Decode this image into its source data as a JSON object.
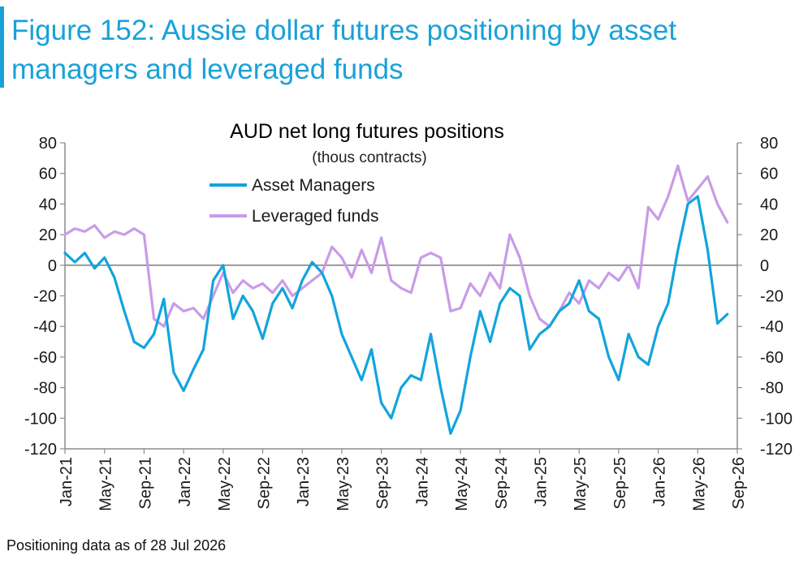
{
  "figure": {
    "title": "Figure 152: Aussie dollar futures positioning by asset managers and leveraged funds",
    "accent_color": "#1aa1d8"
  },
  "footnote": "Positioning data as of 28 Jul 2026",
  "chart_data": {
    "type": "line",
    "title": "AUD net long futures positions",
    "subtitle": "(thous contracts)",
    "ylim": [
      -120,
      80
    ],
    "yticks": [
      80,
      60,
      40,
      20,
      0,
      -20,
      -40,
      -60,
      -80,
      -100,
      -120
    ],
    "y_axes": "left and right, identical scale",
    "xlim": [
      "2021-01",
      "2026-09"
    ],
    "x_tick_labels": [
      "Jan-21",
      "May-21",
      "Sep-21",
      "Jan-22",
      "May-22",
      "Sep-22",
      "Jan-23",
      "May-23",
      "Sep-23",
      "Jan-24",
      "May-24",
      "Sep-24",
      "Jan-25",
      "May-25",
      "Sep-25",
      "Jan-26",
      "May-26",
      "Sep-26"
    ],
    "grid": false,
    "zero_line": true,
    "legend_position": "top-center",
    "series": [
      {
        "name": "Asset Managers",
        "color": "#12a4dd",
        "points": [
          [
            "2021-01",
            8
          ],
          [
            "2021-02",
            2
          ],
          [
            "2021-03",
            8
          ],
          [
            "2021-04",
            -2
          ],
          [
            "2021-05",
            5
          ],
          [
            "2021-06",
            -8
          ],
          [
            "2021-07",
            -30
          ],
          [
            "2021-08",
            -50
          ],
          [
            "2021-09",
            -54
          ],
          [
            "2021-10",
            -45
          ],
          [
            "2021-11",
            -22
          ],
          [
            "2021-12",
            -70
          ],
          [
            "2022-01",
            -82
          ],
          [
            "2022-02",
            -68
          ],
          [
            "2022-03",
            -55
          ],
          [
            "2022-04",
            -10
          ],
          [
            "2022-05",
            0
          ],
          [
            "2022-06",
            -35
          ],
          [
            "2022-07",
            -20
          ],
          [
            "2022-08",
            -30
          ],
          [
            "2022-09",
            -48
          ],
          [
            "2022-10",
            -25
          ],
          [
            "2022-11",
            -15
          ],
          [
            "2022-12",
            -28
          ],
          [
            "2023-01",
            -10
          ],
          [
            "2023-02",
            2
          ],
          [
            "2023-03",
            -5
          ],
          [
            "2023-04",
            -20
          ],
          [
            "2023-05",
            -45
          ],
          [
            "2023-06",
            -60
          ],
          [
            "2023-07",
            -75
          ],
          [
            "2023-08",
            -55
          ],
          [
            "2023-09",
            -90
          ],
          [
            "2023-10",
            -100
          ],
          [
            "2023-11",
            -80
          ],
          [
            "2023-12",
            -72
          ],
          [
            "2024-01",
            -75
          ],
          [
            "2024-02",
            -45
          ],
          [
            "2024-03",
            -80
          ],
          [
            "2024-04",
            -110
          ],
          [
            "2024-05",
            -95
          ],
          [
            "2024-06",
            -60
          ],
          [
            "2024-07",
            -30
          ],
          [
            "2024-08",
            -50
          ],
          [
            "2024-09",
            -25
          ],
          [
            "2024-10",
            -15
          ],
          [
            "2024-11",
            -20
          ],
          [
            "2024-12",
            -55
          ],
          [
            "2025-01",
            -45
          ],
          [
            "2025-02",
            -40
          ],
          [
            "2025-03",
            -30
          ],
          [
            "2025-04",
            -25
          ],
          [
            "2025-05",
            -10
          ],
          [
            "2025-06",
            -30
          ],
          [
            "2025-07",
            -35
          ],
          [
            "2025-08",
            -60
          ],
          [
            "2025-09",
            -75
          ],
          [
            "2025-10",
            -45
          ],
          [
            "2025-11",
            -60
          ],
          [
            "2025-12",
            -65
          ],
          [
            "2026-01",
            -40
          ],
          [
            "2026-02",
            -25
          ],
          [
            "2026-03",
            10
          ],
          [
            "2026-04",
            40
          ],
          [
            "2026-05",
            45
          ],
          [
            "2026-06",
            10
          ],
          [
            "2026-07",
            -38
          ],
          [
            "2026-08",
            -32
          ]
        ]
      },
      {
        "name": "Leveraged funds",
        "color": "#c89ce8",
        "points": [
          [
            "2021-01",
            20
          ],
          [
            "2021-02",
            24
          ],
          [
            "2021-03",
            22
          ],
          [
            "2021-04",
            26
          ],
          [
            "2021-05",
            18
          ],
          [
            "2021-06",
            22
          ],
          [
            "2021-07",
            20
          ],
          [
            "2021-08",
            24
          ],
          [
            "2021-09",
            20
          ],
          [
            "2021-10",
            -35
          ],
          [
            "2021-11",
            -40
          ],
          [
            "2021-12",
            -25
          ],
          [
            "2022-01",
            -30
          ],
          [
            "2022-02",
            -28
          ],
          [
            "2022-03",
            -35
          ],
          [
            "2022-04",
            -20
          ],
          [
            "2022-05",
            -5
          ],
          [
            "2022-06",
            -18
          ],
          [
            "2022-07",
            -10
          ],
          [
            "2022-08",
            -15
          ],
          [
            "2022-09",
            -12
          ],
          [
            "2022-10",
            -18
          ],
          [
            "2022-11",
            -10
          ],
          [
            "2022-12",
            -20
          ],
          [
            "2023-01",
            -15
          ],
          [
            "2023-02",
            -10
          ],
          [
            "2023-03",
            -5
          ],
          [
            "2023-04",
            12
          ],
          [
            "2023-05",
            5
          ],
          [
            "2023-06",
            -8
          ],
          [
            "2023-07",
            10
          ],
          [
            "2023-08",
            -5
          ],
          [
            "2023-09",
            18
          ],
          [
            "2023-10",
            -10
          ],
          [
            "2023-11",
            -15
          ],
          [
            "2023-12",
            -18
          ],
          [
            "2024-01",
            5
          ],
          [
            "2024-02",
            8
          ],
          [
            "2024-03",
            5
          ],
          [
            "2024-04",
            -30
          ],
          [
            "2024-05",
            -28
          ],
          [
            "2024-06",
            -12
          ],
          [
            "2024-07",
            -20
          ],
          [
            "2024-08",
            -5
          ],
          [
            "2024-09",
            -15
          ],
          [
            "2024-10",
            20
          ],
          [
            "2024-11",
            5
          ],
          [
            "2024-12",
            -20
          ],
          [
            "2025-01",
            -35
          ],
          [
            "2025-02",
            -40
          ],
          [
            "2025-03",
            -30
          ],
          [
            "2025-04",
            -18
          ],
          [
            "2025-05",
            -25
          ],
          [
            "2025-06",
            -10
          ],
          [
            "2025-07",
            -15
          ],
          [
            "2025-08",
            -5
          ],
          [
            "2025-09",
            -10
          ],
          [
            "2025-10",
            0
          ],
          [
            "2025-11",
            -15
          ],
          [
            "2025-12",
            38
          ],
          [
            "2026-01",
            30
          ],
          [
            "2026-02",
            45
          ],
          [
            "2026-03",
            65
          ],
          [
            "2026-04",
            42
          ],
          [
            "2026-05",
            50
          ],
          [
            "2026-06",
            58
          ],
          [
            "2026-07",
            40
          ],
          [
            "2026-08",
            28
          ]
        ]
      }
    ]
  }
}
